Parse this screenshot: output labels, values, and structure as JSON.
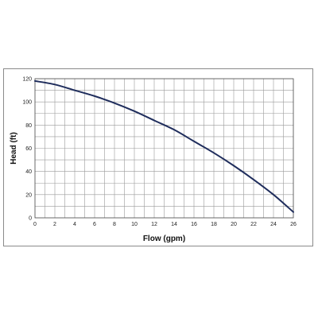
{
  "chart_data": {
    "type": "line",
    "title": "",
    "xlabel": "Flow (gpm)",
    "ylabel": "Head (ft)",
    "xlim": [
      0,
      26
    ],
    "ylim": [
      0,
      120
    ],
    "x_ticks": [
      "0",
      "2",
      "4",
      "6",
      "8",
      "10",
      "12",
      "14",
      "16",
      "18",
      "20",
      "22",
      "24",
      "26"
    ],
    "y_ticks": [
      "0",
      "20",
      "40",
      "60",
      "80",
      "100",
      "120"
    ],
    "grid": true,
    "series": [
      {
        "color": "#1f2d5c",
        "x": [
          0,
          2,
          4,
          6,
          8,
          10,
          12,
          14,
          16,
          18,
          20,
          22,
          24,
          26
        ],
        "y": [
          118,
          115,
          110,
          105,
          99,
          92,
          84,
          76,
          66,
          56,
          45,
          33,
          20,
          5
        ]
      }
    ]
  }
}
